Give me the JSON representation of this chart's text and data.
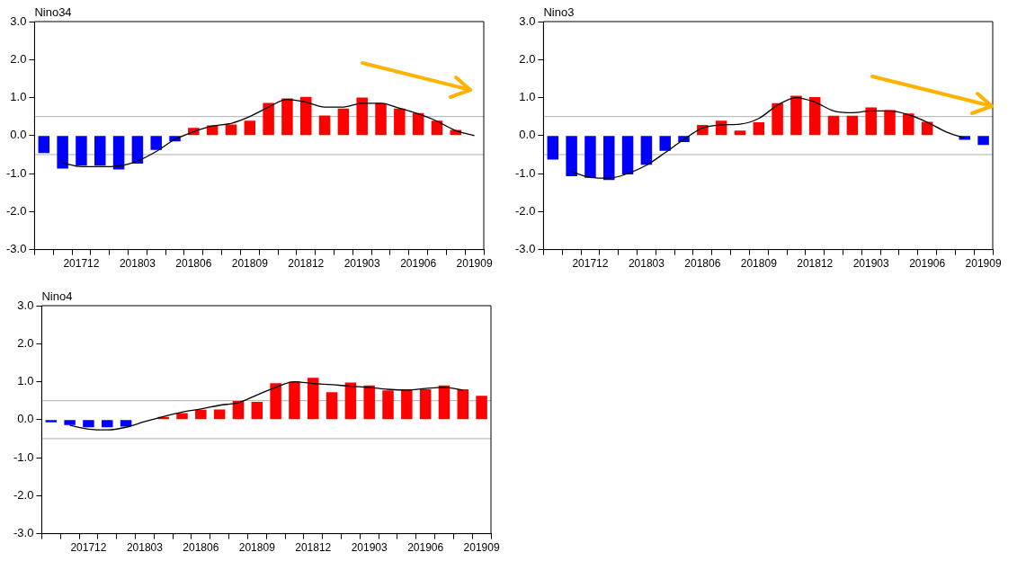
{
  "chart_data": [
    {
      "type": "bar",
      "title": "Nino34",
      "marker": "none",
      "categories": [
        null,
        null,
        "201712",
        null,
        null,
        "201803",
        null,
        null,
        "201806",
        null,
        null,
        "201809",
        null,
        null,
        "201812",
        null,
        null,
        "201903",
        null,
        null,
        "201906",
        null,
        null,
        "201909"
      ],
      "series": [
        {
          "values": [
            -0.46,
            -0.87,
            -0.79,
            -0.79,
            -0.89,
            -0.74,
            -0.38,
            -0.15,
            0.2,
            0.27,
            0.29,
            0.39,
            0.86,
            0.98,
            1.02,
            0.53,
            0.71,
            1.0,
            0.85,
            0.71,
            0.59,
            0.39,
            0.15,
            0.0
          ],
          "colors": [
            "#0000ff",
            "#0000ff",
            "#0000ff",
            "#0000ff",
            "#0000ff",
            "#0000ff",
            "#0000ff",
            "#0000ff",
            "#ff0000",
            "#ff0000",
            "#ff0000",
            "#ff0000",
            "#ff0000",
            "#ff0000",
            "#ff0000",
            "#ff0000",
            "#ff0000",
            "#ff0000",
            "#ff0000",
            "#ff0000",
            "#ff0000",
            "#ff0000",
            "#ff0000",
            "#ff0000"
          ]
        },
        {
          "type": "line",
          "color": "#000000",
          "values": [
            null,
            -0.72,
            -0.82,
            -0.82,
            -0.8,
            -0.67,
            -0.42,
            -0.1,
            0.1,
            0.25,
            0.32,
            0.5,
            0.75,
            0.95,
            0.88,
            0.75,
            0.75,
            0.85,
            0.85,
            0.72,
            0.57,
            0.38,
            0.13,
            0.0
          ]
        }
      ],
      "ylim": [
        -3,
        3
      ],
      "yticks": [
        {
          "value": -3,
          "label": "-3.0"
        },
        {
          "value": -2,
          "label": "-2.0"
        },
        {
          "value": -1,
          "label": "-1.0"
        },
        {
          "value": 0,
          "label": "0.0"
        },
        {
          "value": 1,
          "label": "1.0"
        },
        {
          "value": 2,
          "label": "2.0"
        },
        {
          "value": 3,
          "label": "3.0"
        }
      ],
      "ref_lines": [
        {
          "axis": "y",
          "value": 0.5,
          "color": "#b0b0b0"
        },
        {
          "axis": "y",
          "value": -0.5,
          "color": "#b0b0b0"
        }
      ]
    },
    {
      "type": "bar",
      "title": "Nino3",
      "marker": "none",
      "categories": [
        null,
        null,
        "201712",
        null,
        null,
        "201803",
        null,
        null,
        "201806",
        null,
        null,
        "201809",
        null,
        null,
        "201812",
        null,
        null,
        "201903",
        null,
        null,
        "201906",
        null,
        null,
        "201909"
      ],
      "series": [
        {
          "values": [
            -0.63,
            -1.07,
            -1.11,
            -1.17,
            -1.02,
            -0.77,
            -0.4,
            -0.17,
            0.28,
            0.39,
            0.13,
            0.35,
            0.85,
            1.05,
            1.01,
            0.52,
            0.52,
            0.74,
            0.67,
            0.58,
            0.36,
            0.0,
            -0.11,
            -0.25
          ],
          "colors": [
            "#0000ff",
            "#0000ff",
            "#0000ff",
            "#0000ff",
            "#0000ff",
            "#0000ff",
            "#0000ff",
            "#0000ff",
            "#ff0000",
            "#ff0000",
            "#ff0000",
            "#ff0000",
            "#ff0000",
            "#ff0000",
            "#ff0000",
            "#ff0000",
            "#ff0000",
            "#ff0000",
            "#ff0000",
            "#ff0000",
            "#ff0000",
            "#ff0000",
            "#0000ff",
            "#0000ff"
          ]
        },
        {
          "type": "line",
          "color": "#000000",
          "values": [
            null,
            -0.95,
            -1.1,
            -1.12,
            -1.0,
            -0.78,
            -0.45,
            -0.1,
            0.2,
            0.28,
            0.3,
            0.45,
            0.8,
            1.0,
            0.88,
            0.65,
            0.6,
            0.65,
            0.65,
            0.55,
            0.35,
            0.1,
            -0.07,
            null
          ]
        }
      ],
      "ylim": [
        -3,
        3
      ],
      "yticks": [
        {
          "value": -3,
          "label": "-3.0"
        },
        {
          "value": -2,
          "label": "-2.0"
        },
        {
          "value": -1,
          "label": "-1.0"
        },
        {
          "value": 0,
          "label": "0.0"
        },
        {
          "value": 1,
          "label": "1.0"
        },
        {
          "value": 2,
          "label": "2.0"
        },
        {
          "value": 3,
          "label": "3.0"
        }
      ],
      "ref_lines": [
        {
          "axis": "y",
          "value": 0.5,
          "color": "#b0b0b0"
        },
        {
          "axis": "y",
          "value": -0.5,
          "color": "#b0b0b0"
        }
      ]
    },
    {
      "type": "bar",
      "title": "Nino4",
      "marker": "none",
      "categories": [
        null,
        null,
        "201712",
        null,
        null,
        "201803",
        null,
        null,
        "201806",
        null,
        null,
        "201809",
        null,
        null,
        "201812",
        null,
        null,
        "201903",
        null,
        null,
        "201906",
        null,
        null,
        "201909"
      ],
      "series": [
        {
          "values": [
            -0.07,
            -0.14,
            -0.2,
            -0.2,
            -0.18,
            0.0,
            0.07,
            0.17,
            0.26,
            0.27,
            0.49,
            0.47,
            0.96,
            1.0,
            1.1,
            0.72,
            0.98,
            0.9,
            0.77,
            0.8,
            0.8,
            0.9,
            0.8,
            0.63
          ],
          "colors": [
            "#0000ff",
            "#0000ff",
            "#0000ff",
            "#0000ff",
            "#0000ff",
            "#0000ff",
            "#ff0000",
            "#ff0000",
            "#ff0000",
            "#ff0000",
            "#ff0000",
            "#ff0000",
            "#ff0000",
            "#ff0000",
            "#ff0000",
            "#ff0000",
            "#ff0000",
            "#ff0000",
            "#ff0000",
            "#ff0000",
            "#ff0000",
            "#ff0000",
            "#ff0000",
            "#ff0000"
          ]
        },
        {
          "type": "line",
          "color": "#000000",
          "values": [
            null,
            -0.15,
            -0.25,
            -0.27,
            -0.2,
            -0.05,
            0.08,
            0.2,
            0.28,
            0.38,
            0.45,
            0.65,
            0.85,
            1.0,
            0.95,
            0.92,
            0.88,
            0.85,
            0.8,
            0.78,
            0.82,
            0.85,
            0.78,
            null
          ]
        }
      ],
      "ylim": [
        -3,
        3
      ],
      "yticks": [
        {
          "value": -3,
          "label": "-3.0"
        },
        {
          "value": -2,
          "label": "-2.0"
        },
        {
          "value": -1,
          "label": "-1.0"
        },
        {
          "value": 0,
          "label": "0.0"
        },
        {
          "value": 1,
          "label": "1.0"
        },
        {
          "value": 2,
          "label": "2.0"
        },
        {
          "value": 3,
          "label": "3.0"
        }
      ],
      "ref_lines": [
        {
          "axis": "y",
          "value": 0.5,
          "color": "#b0b0b0"
        },
        {
          "axis": "y",
          "value": -0.5,
          "color": "#b0b0b0"
        }
      ]
    }
  ]
}
